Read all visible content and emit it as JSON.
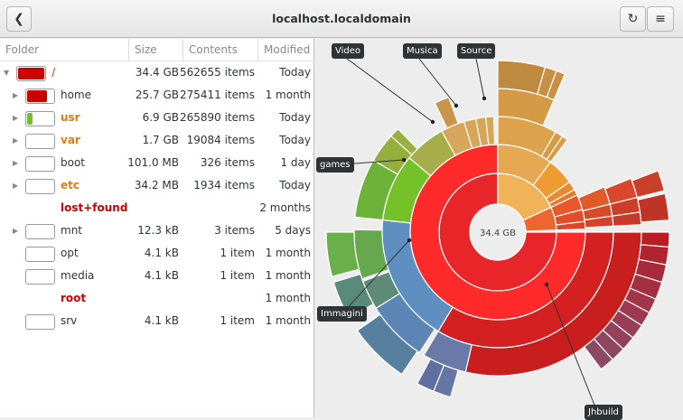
{
  "header": {
    "title": "localhost.localdomain",
    "back_icon": "go-back-icon",
    "reload_icon": "reload-icon"
  },
  "columns": {
    "folder": "Folder",
    "size": "Size",
    "contents": "Contents",
    "modified": "Modified"
  },
  "rows": [
    {
      "name": "/",
      "size": "34.4 GB",
      "contents": "562655 items",
      "modified": "Today",
      "level": 0,
      "expanded": true,
      "usage": 1.0,
      "color": "#cc0000",
      "name_color": "#e0601c"
    },
    {
      "name": "home",
      "size": "25.7 GB",
      "contents": "275411 items",
      "modified": "1 month",
      "level": 1,
      "usage": 0.75,
      "color": "#cc0000",
      "name_color": "#2e3436"
    },
    {
      "name": "usr",
      "size": "6.9 GB",
      "contents": "265890 items",
      "modified": "Today",
      "level": 1,
      "usage": 0.2,
      "color": "#73c12a",
      "name_color": "#e07b10"
    },
    {
      "name": "var",
      "size": "1.7 GB",
      "contents": "19084 items",
      "modified": "Today",
      "level": 1,
      "usage": 0.0,
      "color": "#cc0000",
      "name_color": "#e07b10"
    },
    {
      "name": "boot",
      "size": "101.0 MB",
      "contents": "326 items",
      "modified": "1 day",
      "level": 1,
      "usage": 0.0,
      "color": "#cc0000",
      "name_color": "#2e3436"
    },
    {
      "name": "etc",
      "size": "34.2 MB",
      "contents": "1934 items",
      "modified": "Today",
      "level": 1,
      "usage": 0.0,
      "color": "#cc0000",
      "name_color": "#e07b10"
    },
    {
      "name": "lost+found",
      "size": "",
      "contents": "",
      "modified": "2 months",
      "level": 1,
      "nobar": true,
      "noexp": true,
      "name_color": "#cc0000"
    },
    {
      "name": "mnt",
      "size": "12.3 kB",
      "contents": "3 items",
      "modified": "5 days",
      "level": 1,
      "usage": 0.0,
      "color": "#cc0000",
      "name_color": "#2e3436"
    },
    {
      "name": "opt",
      "size": "4.1 kB",
      "contents": "1 item",
      "modified": "1 month",
      "level": 1,
      "usage": 0.0,
      "noexp": true,
      "name_color": "#2e3436"
    },
    {
      "name": "media",
      "size": "4.1 kB",
      "contents": "1 item",
      "modified": "1 month",
      "level": 1,
      "usage": 0.0,
      "noexp": true,
      "name_color": "#2e3436"
    },
    {
      "name": "root",
      "size": "",
      "contents": "",
      "modified": "1 month",
      "level": 1,
      "nobar": true,
      "noexp": true,
      "name_color": "#cc0000"
    },
    {
      "name": "srv",
      "size": "4.1 kB",
      "contents": "1 item",
      "modified": "1 month",
      "level": 1,
      "usage": 0.0,
      "noexp": true,
      "name_color": "#2e3436"
    }
  ],
  "chart": {
    "center_label": "34.4 GB",
    "labels": [
      "Video",
      "Musica",
      "Source",
      "games",
      "Immagini",
      "Jhbuild"
    ],
    "segments": [
      [
        1,
        0,
        270,
        "#e8262a"
      ],
      [
        1,
        270,
        335,
        "#f0b35a"
      ],
      [
        1,
        335,
        358,
        "#ef6530"
      ],
      [
        2,
        0,
        270,
        "#ff2a2a"
      ],
      [
        2,
        270,
        307,
        "#e6a850"
      ],
      [
        2,
        307,
        325,
        "#ee9d35"
      ],
      [
        2,
        325,
        331,
        "#e88a30"
      ],
      [
        2,
        331,
        335,
        "#e57a2c"
      ],
      [
        2,
        335,
        345,
        "#e8582c"
      ],
      [
        2,
        345,
        353,
        "#e24e2c"
      ],
      [
        2,
        353,
        358,
        "#de452a"
      ],
      [
        3,
        0,
        121,
        "#d42020"
      ],
      [
        3,
        121,
        186,
        "#5f8fc0"
      ],
      [
        3,
        186,
        220,
        "#74c12a"
      ],
      [
        3,
        220,
        241,
        "#a8ad4b"
      ],
      [
        3,
        241,
        253,
        "#d6a65a"
      ],
      [
        3,
        253,
        259,
        "#d6a65a"
      ],
      [
        3,
        259,
        264,
        "#d6a65a"
      ],
      [
        3,
        264,
        268,
        "#d6a65a"
      ],
      [
        3,
        270,
        300,
        "#dca24c"
      ],
      [
        3,
        300,
        304,
        "#d89a45"
      ],
      [
        3,
        304,
        307,
        "#d89a45"
      ],
      [
        3,
        337,
        346,
        "#e05a2a"
      ],
      [
        3,
        346,
        352,
        "#d84a2c"
      ],
      [
        3,
        352,
        357,
        "#d4422a"
      ],
      [
        4,
        0,
        103,
        "#c81e1e"
      ],
      [
        4,
        103,
        121,
        "#6a7aa8"
      ],
      [
        4,
        123,
        148,
        "#5b86b5"
      ],
      [
        4,
        148,
        160,
        "#5e8a78"
      ],
      [
        4,
        161,
        181,
        "#66a84e"
      ],
      [
        4,
        186,
        210,
        "#6db33a"
      ],
      [
        4,
        210,
        222,
        "#93b03e"
      ],
      [
        4,
        222,
        226,
        "#98b040"
      ],
      [
        4,
        244,
        250,
        "#c8954c"
      ],
      [
        4,
        270,
        293,
        "#d49a45"
      ],
      [
        4,
        338,
        346,
        "#d9482c"
      ],
      [
        4,
        346,
        352,
        "#cc3e28"
      ],
      [
        4,
        352,
        357,
        "#c83a28"
      ],
      [
        5,
        0,
        5,
        "#b81e24"
      ],
      [
        5,
        5,
        11,
        "#b02430"
      ],
      [
        5,
        11,
        17,
        "#a82a38"
      ],
      [
        5,
        17,
        23,
        "#a23040"
      ],
      [
        5,
        23,
        28,
        "#a03648"
      ],
      [
        5,
        28,
        33,
        "#9c3a52"
      ],
      [
        5,
        33,
        38,
        "#983e58"
      ],
      [
        5,
        38,
        43,
        "#94425c"
      ],
      [
        5,
        43,
        48,
        "#904660"
      ],
      [
        5,
        48,
        53,
        "#8c4a64"
      ],
      [
        5,
        106,
        112,
        "#6676a4"
      ],
      [
        5,
        112,
        118,
        "#5f6fa0"
      ],
      [
        5,
        124,
        145,
        "#57809f"
      ],
      [
        5,
        150,
        163,
        "#5a8a7a"
      ],
      [
        5,
        165,
        180,
        "#6ab04a"
      ],
      [
        5,
        270,
        286,
        "#bd8a40"
      ],
      [
        5,
        286,
        290,
        "#c89045"
      ],
      [
        5,
        290,
        293,
        "#c89045"
      ],
      [
        5,
        339,
        346,
        "#c8402a"
      ],
      [
        5,
        347,
        356,
        "#bf3426"
      ]
    ],
    "colors": {
      "background": "#ededed",
      "tooltip": "#2e3436"
    }
  }
}
